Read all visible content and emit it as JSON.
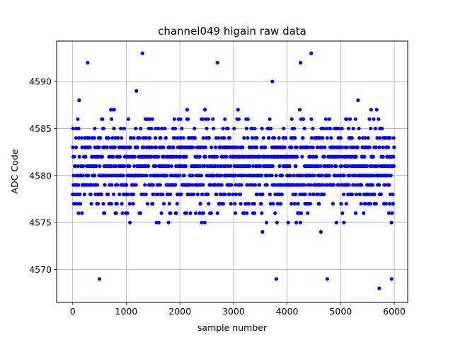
{
  "chart_data": {
    "type": "scatter",
    "title": "channel049 higain raw data",
    "xlabel": "sample number",
    "ylabel": "ADC Code",
    "xlim": [
      -300,
      6250
    ],
    "ylim": [
      4566.5,
      4594.3
    ],
    "xticks": [
      0,
      1000,
      2000,
      3000,
      4000,
      5000,
      6000
    ],
    "yticks": [
      4570,
      4575,
      4580,
      4585,
      4590
    ],
    "grid": true,
    "marker_color": "#0000ff",
    "sample_count": 6000,
    "value_range": [
      4568,
      4593
    ],
    "typical_band": [
      4574,
      4588
    ],
    "notable_points": [
      {
        "x": 1300,
        "y": 4593
      },
      {
        "x": 4450,
        "y": 4593
      },
      {
        "x": 280,
        "y": 4592
      },
      {
        "x": 2700,
        "y": 4592
      },
      {
        "x": 4250,
        "y": 4592
      },
      {
        "x": 500,
        "y": 4569
      },
      {
        "x": 3800,
        "y": 4569
      },
      {
        "x": 4750,
        "y": 4569
      },
      {
        "x": 5950,
        "y": 4569
      },
      {
        "x": 5720,
        "y": 4568
      }
    ]
  }
}
